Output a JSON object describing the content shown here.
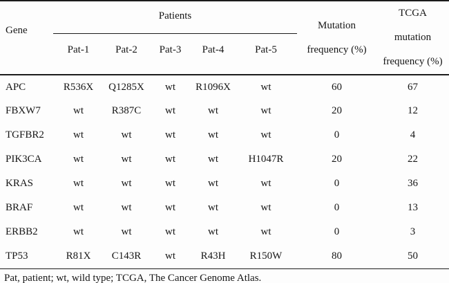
{
  "table": {
    "header": {
      "gene": "Gene",
      "patients_group": "Patients",
      "patient_cols": [
        "Pat-1",
        "Pat-2",
        "Pat-3",
        "Pat-4",
        "Pat-5"
      ],
      "mutation_freq_lines": [
        "Mutation",
        "frequency (%)"
      ],
      "tcga_lines": [
        "TCGA",
        "mutation",
        "frequency (%)"
      ]
    },
    "rows": [
      {
        "gene": "APC",
        "p1": "R536X",
        "p2": "Q1285X",
        "p3": "wt",
        "p4": "R1096X",
        "p5": "wt",
        "mut": "60",
        "tcga": "67"
      },
      {
        "gene": "FBXW7",
        "p1": "wt",
        "p2": "R387C",
        "p3": "wt",
        "p4": "wt",
        "p5": "wt",
        "mut": "20",
        "tcga": "12"
      },
      {
        "gene": "TGFBR2",
        "p1": "wt",
        "p2": "wt",
        "p3": "wt",
        "p4": "wt",
        "p5": "wt",
        "mut": "0",
        "tcga": "4"
      },
      {
        "gene": "PIK3CA",
        "p1": "wt",
        "p2": "wt",
        "p3": "wt",
        "p4": "wt",
        "p5": "H1047R",
        "mut": "20",
        "tcga": "22"
      },
      {
        "gene": "KRAS",
        "p1": "wt",
        "p2": "wt",
        "p3": "wt",
        "p4": "wt",
        "p5": "wt",
        "mut": "0",
        "tcga": "36"
      },
      {
        "gene": "BRAF",
        "p1": "wt",
        "p2": "wt",
        "p3": "wt",
        "p4": "wt",
        "p5": "wt",
        "mut": "0",
        "tcga": "13"
      },
      {
        "gene": "ERBB2",
        "p1": "wt",
        "p2": "wt",
        "p3": "wt",
        "p4": "wt",
        "p5": "wt",
        "mut": "0",
        "tcga": "3"
      },
      {
        "gene": "TP53",
        "p1": "R81X",
        "p2": "C143R",
        "p3": "wt",
        "p4": "R43H",
        "p5": "R150W",
        "mut": "80",
        "tcga": "50"
      }
    ],
    "footnote": "Pat, patient; wt, wild type; TCGA, The Cancer Genome Atlas.",
    "colors": {
      "text": "#161616",
      "rule": "#1b1b1b",
      "background": "#fdfdfd"
    }
  }
}
